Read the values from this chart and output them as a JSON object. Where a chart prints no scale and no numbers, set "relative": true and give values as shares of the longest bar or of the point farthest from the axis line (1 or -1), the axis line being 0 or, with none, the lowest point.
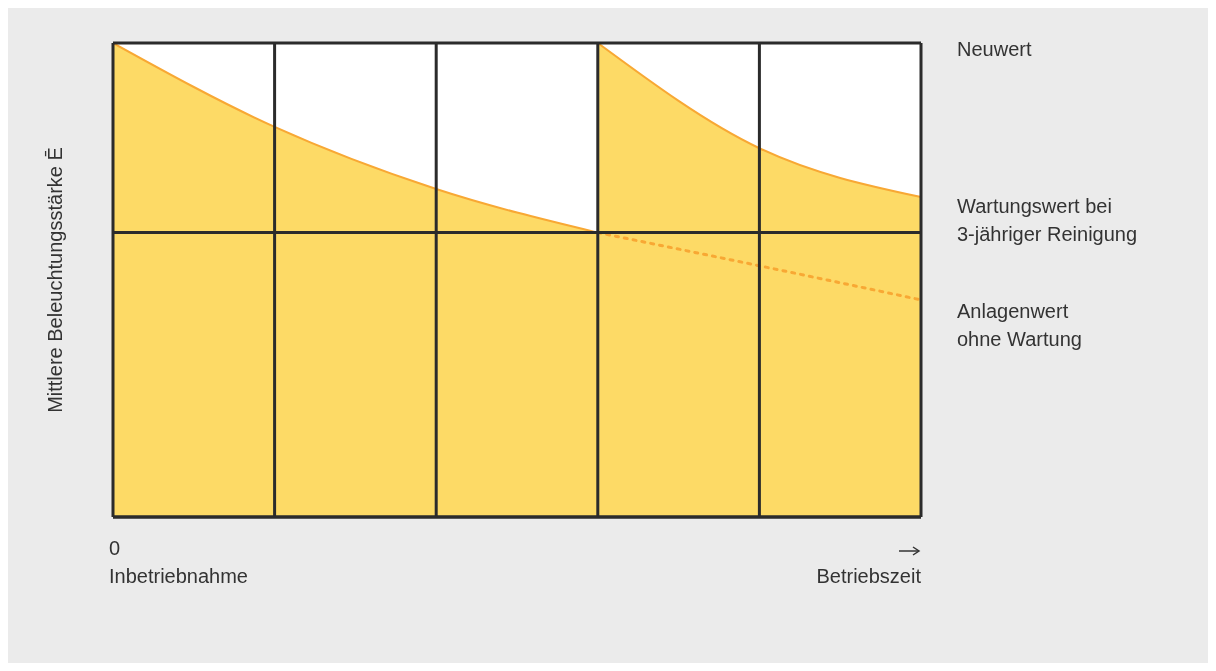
{
  "chart_data": {
    "type": "area",
    "relative": true,
    "ylabel": "Mittlere Beleuchtungsstärke Ē",
    "xlabel": "Betriebszeit",
    "categories": [
      null,
      null,
      null,
      null,
      null,
      null
    ],
    "grid": "x",
    "legend": false,
    "series": [
      {
        "color": "#fdda66",
        "values": [
          1,
          0.823,
          0.692,
          0.6,
          null,
          null
        ]
      },
      {
        "color": "#fdda66",
        "values": [
          null,
          null,
          null,
          1,
          0.778,
          0.675
        ]
      },
      {
        "type": "line",
        "color": "#f8a834",
        "line_style": "dotted",
        "values": [
          null,
          null,
          null,
          0.6,
          0.53,
          0.458
        ]
      }
    ],
    "ref_lines": [
      {
        "axis": "y",
        "value": 0.6,
        "label": "Wartungswert bei\n3-jähriger Reinigung",
        "color": "#2b2b2b"
      }
    ],
    "annotations": [
      "Neuwert",
      "Anlagenwert\nohne Wartung",
      "0\nInbetriebnahme"
    ]
  }
}
